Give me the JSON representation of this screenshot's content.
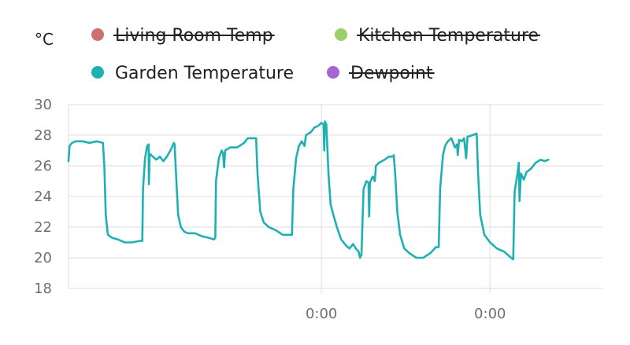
{
  "chart_data": {
    "type": "line",
    "ylabel": "°C",
    "ylim": [
      18,
      30
    ],
    "y_ticks": [
      "18",
      "20",
      "22",
      "24",
      "26",
      "28",
      "30"
    ],
    "x_ticks": [
      "0:00",
      "0:00",
      "0:00"
    ],
    "x_tick_positions_hours": [
      36,
      60,
      84
    ],
    "xlim_hours": [
      0,
      76
    ],
    "grid": true,
    "legend_placement": "top",
    "series": [
      {
        "name": "Living Room Temp",
        "color": "#cd7070",
        "hidden": true,
        "points": []
      },
      {
        "name": "Kitchen Temperature",
        "color": "#9bcf6b",
        "hidden": true,
        "points": []
      },
      {
        "name": "Garden Temperature",
        "color": "#1fb1b1",
        "hidden": false,
        "points": [
          [
            0.0,
            26.3
          ],
          [
            0.15,
            27.3
          ],
          [
            0.5,
            27.5
          ],
          [
            1.0,
            27.6
          ],
          [
            2.0,
            27.6
          ],
          [
            3.0,
            27.5
          ],
          [
            4.0,
            27.6
          ],
          [
            4.9,
            27.5
          ],
          [
            5.1,
            26.0
          ],
          [
            5.3,
            22.8
          ],
          [
            5.6,
            21.5
          ],
          [
            6.2,
            21.3
          ],
          [
            7.0,
            21.2
          ],
          [
            8.0,
            21.0
          ],
          [
            9.0,
            21.0
          ],
          [
            10.2,
            21.1
          ],
          [
            10.5,
            21.1
          ],
          [
            10.6,
            24.5
          ],
          [
            10.9,
            26.5
          ],
          [
            11.2,
            27.3
          ],
          [
            11.4,
            27.4
          ],
          [
            11.45,
            24.8
          ],
          [
            11.55,
            26.8
          ],
          [
            12.0,
            26.6
          ],
          [
            12.5,
            26.4
          ],
          [
            13.0,
            26.6
          ],
          [
            13.5,
            26.3
          ],
          [
            14.0,
            26.6
          ],
          [
            14.5,
            27.0
          ],
          [
            15.0,
            27.5
          ],
          [
            15.1,
            27.4
          ],
          [
            15.3,
            25.5
          ],
          [
            15.6,
            22.8
          ],
          [
            16.0,
            22.0
          ],
          [
            16.5,
            21.7
          ],
          [
            17.0,
            21.6
          ],
          [
            18.0,
            21.6
          ],
          [
            19.0,
            21.4
          ],
          [
            20.0,
            21.3
          ],
          [
            20.7,
            21.2
          ],
          [
            20.9,
            21.3
          ],
          [
            21.0,
            25.0
          ],
          [
            21.4,
            26.5
          ],
          [
            21.8,
            27.0
          ],
          [
            22.0,
            26.8
          ],
          [
            22.15,
            25.9
          ],
          [
            22.3,
            27.0
          ],
          [
            23.0,
            27.2
          ],
          [
            24.0,
            27.2
          ],
          [
            25.0,
            27.5
          ],
          [
            25.5,
            27.8
          ],
          [
            26.5,
            27.8
          ],
          [
            26.7,
            27.8
          ],
          [
            26.9,
            25.5
          ],
          [
            27.3,
            23.0
          ],
          [
            27.8,
            22.3
          ],
          [
            28.5,
            22.0
          ],
          [
            29.5,
            21.8
          ],
          [
            30.5,
            21.5
          ],
          [
            31.5,
            21.5
          ],
          [
            31.8,
            21.5
          ],
          [
            32.0,
            24.5
          ],
          [
            32.4,
            26.5
          ],
          [
            32.8,
            27.3
          ],
          [
            33.2,
            27.6
          ],
          [
            33.6,
            27.3
          ],
          [
            33.8,
            28.0
          ],
          [
            34.5,
            28.2
          ],
          [
            35.0,
            28.5
          ],
          [
            35.5,
            28.6
          ],
          [
            36.0,
            28.8
          ],
          [
            36.3,
            28.7
          ],
          [
            36.4,
            27.0
          ],
          [
            36.5,
            28.9
          ],
          [
            36.7,
            28.7
          ],
          [
            37.0,
            25.5
          ],
          [
            37.3,
            23.5
          ],
          [
            37.7,
            22.8
          ],
          [
            38.2,
            22.0
          ],
          [
            38.8,
            21.2
          ],
          [
            39.5,
            20.8
          ],
          [
            40.0,
            20.6
          ],
          [
            40.5,
            20.9
          ],
          [
            40.9,
            20.6
          ],
          [
            41.3,
            20.4
          ],
          [
            41.5,
            20.0
          ],
          [
            41.7,
            20.2
          ],
          [
            42.0,
            24.5
          ],
          [
            42.4,
            25.0
          ],
          [
            42.7,
            24.9
          ],
          [
            42.8,
            22.7
          ],
          [
            42.9,
            24.9
          ],
          [
            43.3,
            25.3
          ],
          [
            43.6,
            25.0
          ],
          [
            43.75,
            26.0
          ],
          [
            44.2,
            26.2
          ],
          [
            45.0,
            26.4
          ],
          [
            45.6,
            26.6
          ],
          [
            46.2,
            26.6
          ],
          [
            46.3,
            26.7
          ],
          [
            46.5,
            25.5
          ],
          [
            46.8,
            23.0
          ],
          [
            47.2,
            21.5
          ],
          [
            47.8,
            20.6
          ],
          [
            48.5,
            20.3
          ],
          [
            49.5,
            20.0
          ],
          [
            50.5,
            20.0
          ],
          [
            51.5,
            20.3
          ],
          [
            52.3,
            20.7
          ],
          [
            52.7,
            20.7
          ],
          [
            52.9,
            24.5
          ],
          [
            53.3,
            26.7
          ],
          [
            53.6,
            27.3
          ],
          [
            54.0,
            27.6
          ],
          [
            54.5,
            27.8
          ],
          [
            55.0,
            27.2
          ],
          [
            55.3,
            27.4
          ],
          [
            55.4,
            26.7
          ],
          [
            55.6,
            27.7
          ],
          [
            56.0,
            27.6
          ],
          [
            56.3,
            27.8
          ],
          [
            56.6,
            26.5
          ],
          [
            56.8,
            27.9
          ],
          [
            57.5,
            28.0
          ],
          [
            58.1,
            28.1
          ],
          [
            58.3,
            25.5
          ],
          [
            58.6,
            22.8
          ],
          [
            59.2,
            21.5
          ],
          [
            60.0,
            21.0
          ],
          [
            61.0,
            20.6
          ],
          [
            62.0,
            20.4
          ],
          [
            62.5,
            20.2
          ],
          [
            63.0,
            20.0
          ],
          [
            63.3,
            19.9
          ],
          [
            63.5,
            24.3
          ],
          [
            63.9,
            25.5
          ],
          [
            64.1,
            26.2
          ],
          [
            64.2,
            23.7
          ],
          [
            64.4,
            25.5
          ],
          [
            64.8,
            25.1
          ],
          [
            65.2,
            25.6
          ],
          [
            65.8,
            25.8
          ],
          [
            66.5,
            26.2
          ],
          [
            67.2,
            26.4
          ],
          [
            67.8,
            26.3
          ],
          [
            68.3,
            26.4
          ]
        ]
      },
      {
        "name": "Dewpoint",
        "color": "#a566d5",
        "hidden": true,
        "points": []
      }
    ]
  }
}
